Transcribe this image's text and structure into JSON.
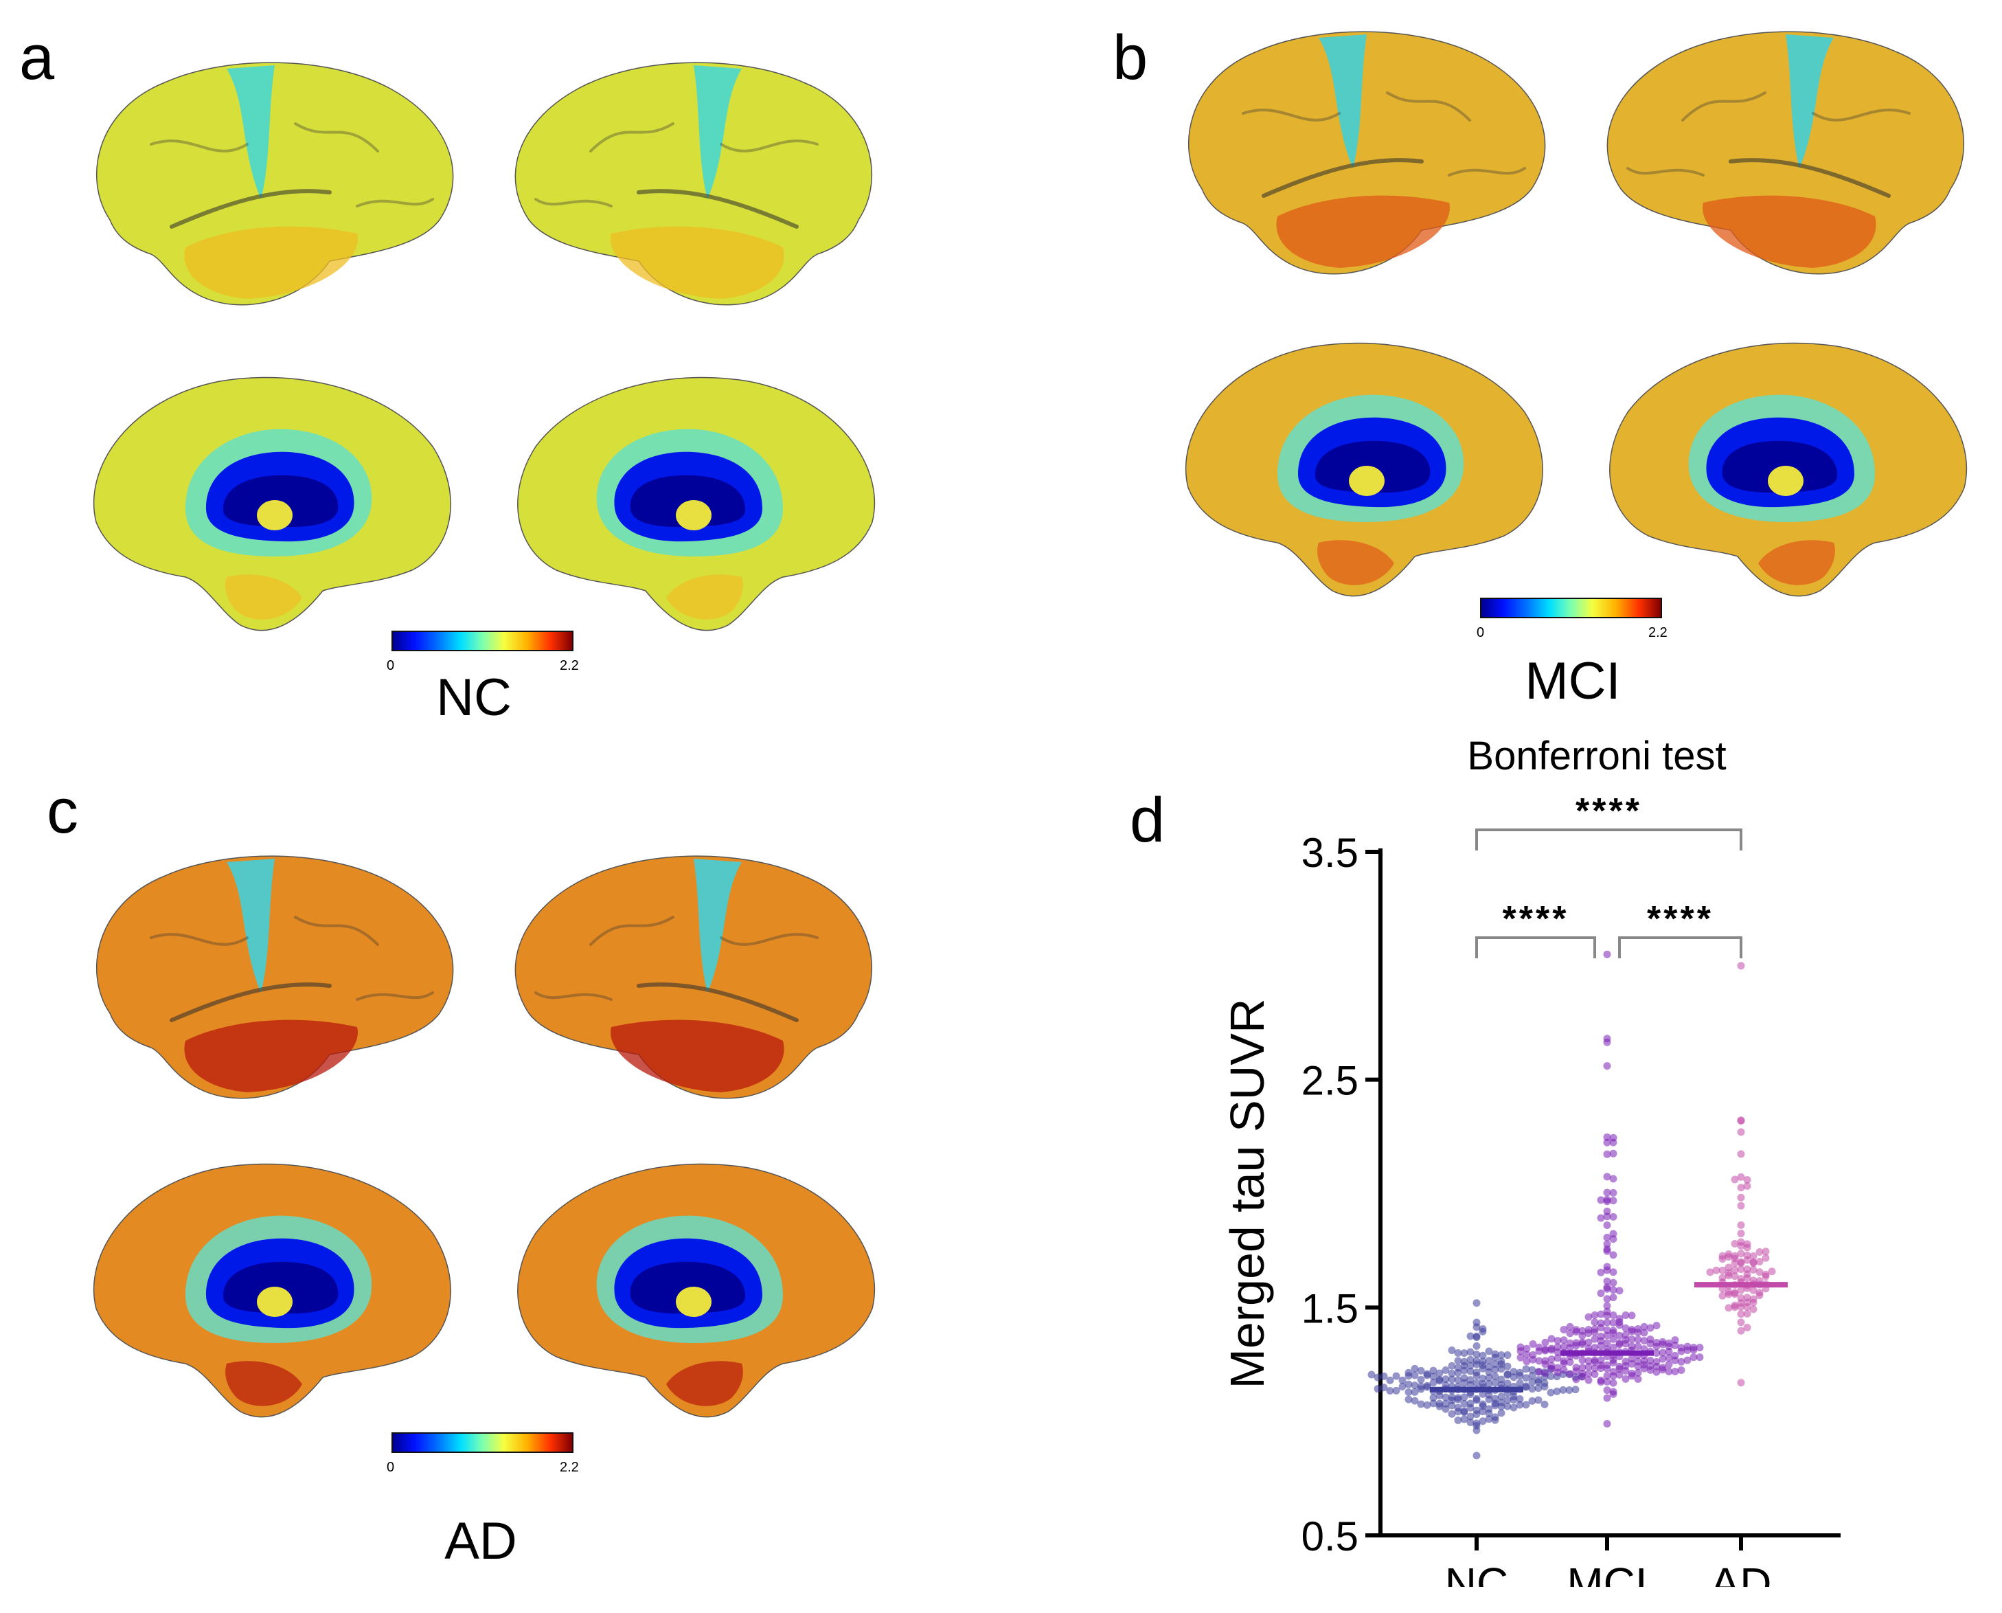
{
  "figure": {
    "panels": {
      "a": {
        "letter": "a",
        "group": "NC",
        "scale_min": "0",
        "scale_max": "2.2"
      },
      "b": {
        "letter": "b",
        "group": "MCI",
        "scale_min": "0",
        "scale_max": "2.2"
      },
      "c": {
        "letter": "c",
        "group": "AD",
        "scale_min": "0",
        "scale_max": "2.2"
      },
      "d": {
        "letter": "d"
      }
    },
    "brain_colors": {
      "a": {
        "base": "#d7df3a",
        "hot": "#efbd23",
        "cool": "#3fd8d8"
      },
      "b": {
        "base": "#e3b22e",
        "hot": "#e05a18",
        "cool": "#3ad0e0"
      },
      "c": {
        "base": "#e48a22",
        "hot": "#b81a0c",
        "cool": "#3ad2e4"
      }
    }
  },
  "chart_data": {
    "type": "scatter",
    "title": "Bonferroni test",
    "xlabel": "",
    "ylabel": "Merged tau SUVR",
    "categories": [
      "NC",
      "MCI",
      "AD"
    ],
    "ylim": [
      0.5,
      3.5
    ],
    "yticks": [
      "0.5",
      "1.5",
      "2.5",
      "3.5"
    ],
    "ytick_values": [
      0.5,
      1.5,
      2.5,
      3.5
    ],
    "series": [
      {
        "name": "NC",
        "color": "#3d3d9c",
        "mean": 1.14,
        "min": 0.85,
        "max": 1.52,
        "n": 220
      },
      {
        "name": "MCI",
        "color": "#7a1fb5",
        "mean": 1.3,
        "min": 0.99,
        "max": 3.05,
        "n": 260
      },
      {
        "name": "AD",
        "color": "#c24aa8",
        "mean": 1.6,
        "min": 1.17,
        "max": 3.0,
        "n": 95
      }
    ],
    "comparisons": [
      {
        "from": "NC",
        "to": "MCI",
        "label": "****"
      },
      {
        "from": "MCI",
        "to": "AD",
        "label": "****"
      },
      {
        "from": "NC",
        "to": "AD",
        "label": "****"
      }
    ]
  }
}
